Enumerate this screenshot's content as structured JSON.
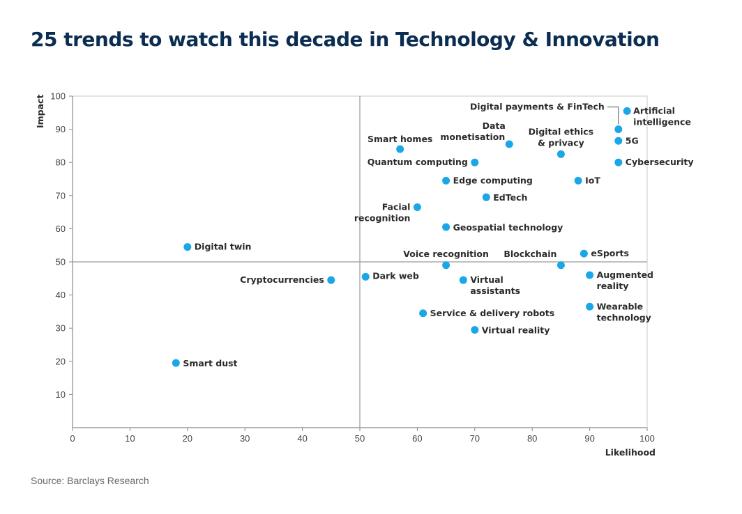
{
  "title": "25 trends to watch this decade in Technology & Innovation",
  "source": "Source: Barclays Research",
  "colors": {
    "title": "#0c2d52",
    "point": "#1aa7e8",
    "axis": "#888888",
    "grid_mid": "#9a9a9a"
  },
  "chart_data": {
    "type": "scatter",
    "xlabel": "Likelihood",
    "ylabel": "Impact",
    "xlim": [
      0,
      100
    ],
    "ylim": [
      0,
      100
    ],
    "x_ticks": [
      "0",
      "10",
      "20",
      "30",
      "40",
      "50",
      "60",
      "70",
      "80",
      "90",
      "100"
    ],
    "y_ticks": [
      "10",
      "20",
      "30",
      "40",
      "50",
      "60",
      "70",
      "80",
      "90",
      "100"
    ],
    "reference_lines": {
      "x": 50,
      "y": 50
    },
    "points": [
      {
        "label": "Artificial intelligence",
        "x": 96.5,
        "y": 95.5
      },
      {
        "label": "Digital payments & FinTech",
        "x": 95,
        "y": 90
      },
      {
        "label": "5G",
        "x": 95,
        "y": 86.5
      },
      {
        "label": "Cybersecurity",
        "x": 95,
        "y": 80
      },
      {
        "label": "Data monetisation",
        "x": 76,
        "y": 85.5
      },
      {
        "label": "Digital ethics & privacy",
        "x": 85,
        "y": 82.5
      },
      {
        "label": "Smart homes",
        "x": 57,
        "y": 84
      },
      {
        "label": "Quantum computing",
        "x": 70,
        "y": 80
      },
      {
        "label": "Edge computing",
        "x": 65,
        "y": 74.5
      },
      {
        "label": "IoT",
        "x": 88,
        "y": 74.5
      },
      {
        "label": "EdTech",
        "x": 72,
        "y": 69.5
      },
      {
        "label": "Facial recognition",
        "x": 60,
        "y": 66.5
      },
      {
        "label": "Geospatial technology",
        "x": 65,
        "y": 60.5
      },
      {
        "label": "Digital twin",
        "x": 20,
        "y": 54.5
      },
      {
        "label": "eSports",
        "x": 89,
        "y": 52.5
      },
      {
        "label": "Voice recognition",
        "x": 65,
        "y": 49
      },
      {
        "label": "Blockchain",
        "x": 85,
        "y": 49
      },
      {
        "label": "Cryptocurrencies",
        "x": 45,
        "y": 44.5
      },
      {
        "label": "Dark web",
        "x": 51,
        "y": 45.5
      },
      {
        "label": "Virtual assistants",
        "x": 68,
        "y": 44.5
      },
      {
        "label": "Augmented reality",
        "x": 90,
        "y": 46
      },
      {
        "label": "Wearable technology",
        "x": 90,
        "y": 36.5
      },
      {
        "label": "Service & delivery robots",
        "x": 61,
        "y": 34.5
      },
      {
        "label": "Virtual reality",
        "x": 70,
        "y": 29.5
      },
      {
        "label": "Smart dust",
        "x": 18,
        "y": 19.5
      }
    ]
  }
}
